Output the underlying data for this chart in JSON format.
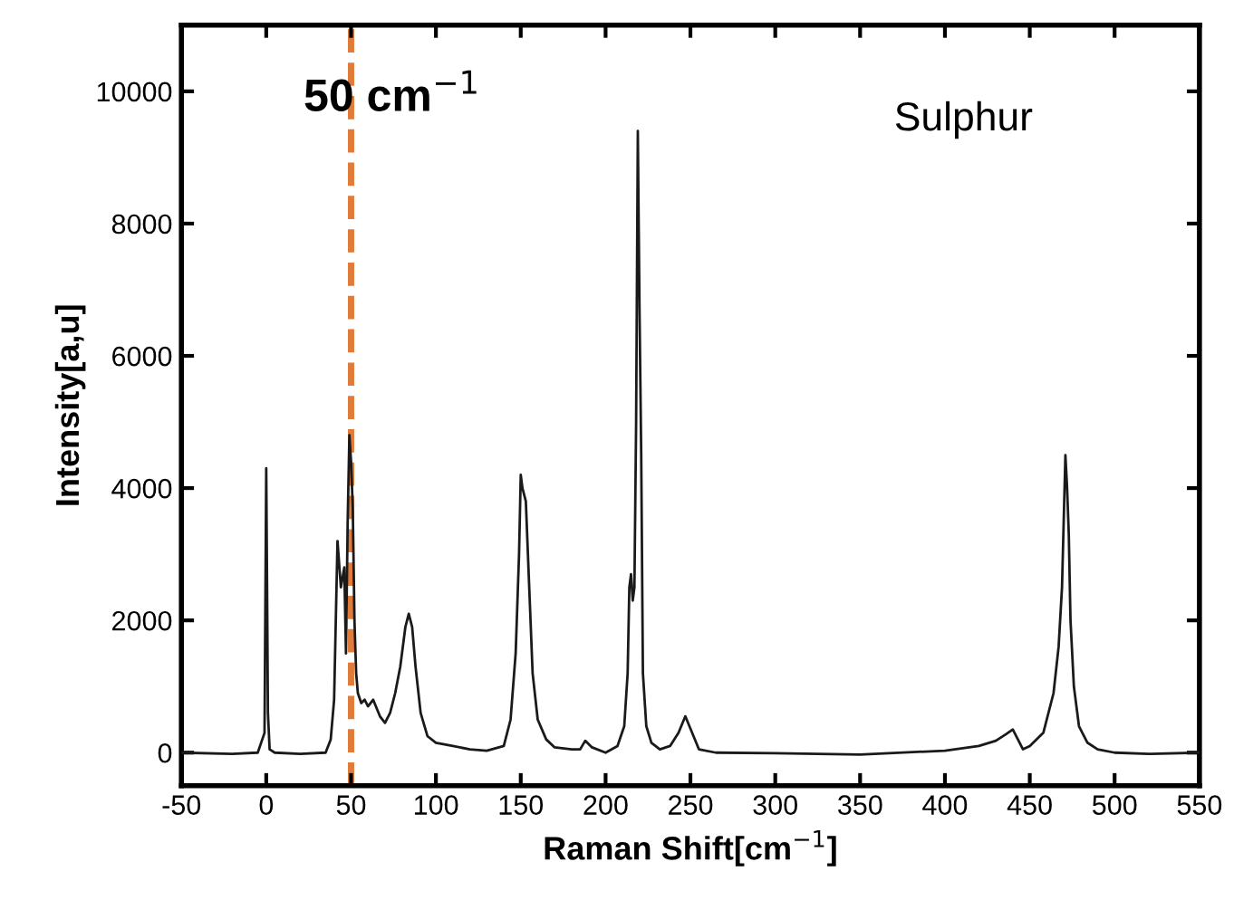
{
  "chart_data": {
    "type": "line",
    "xlabel": "Raman Shift[cm$^{−1}$]",
    "ylabel": "Intensity[a,u]",
    "annotations": [
      "50 cm$^{−1}$",
      "Sulphur"
    ],
    "series": [
      {
        "color": "#1a1a1a",
        "x": [
          -50,
          -20,
          -5,
          -1,
          0,
          0.5,
          1,
          2,
          5,
          20,
          35,
          38,
          40,
          42,
          44,
          46,
          47,
          48,
          49,
          50,
          51,
          52,
          53,
          54,
          56,
          58,
          60,
          63,
          67,
          70,
          73,
          76,
          79,
          82,
          84,
          86,
          88,
          91,
          95,
          100,
          110,
          120,
          130,
          140,
          144,
          147,
          149,
          150,
          151,
          152,
          153,
          155,
          157,
          160,
          165,
          170,
          180,
          185,
          188,
          192,
          200,
          207,
          211,
          213,
          214,
          215,
          216,
          217,
          218,
          219,
          220,
          221,
          222,
          224,
          227,
          232,
          238,
          243,
          247,
          251,
          255,
          265,
          300,
          350,
          400,
          420,
          430,
          436,
          440,
          443,
          446,
          450,
          458,
          464,
          467,
          469,
          470,
          471,
          472,
          473,
          474,
          476,
          479,
          484,
          490,
          500,
          520,
          550
        ],
        "values": [
          0,
          -20,
          0,
          300,
          4300,
          2500,
          600,
          50,
          0,
          -20,
          0,
          200,
          800,
          3200,
          2500,
          2800,
          1500,
          3500,
          4800,
          4400,
          3700,
          2000,
          1200,
          900,
          750,
          800,
          700,
          800,
          550,
          450,
          600,
          900,
          1300,
          1900,
          2100,
          1900,
          1300,
          600,
          250,
          150,
          100,
          50,
          30,
          100,
          500,
          1500,
          3000,
          4200,
          4000,
          3900,
          3800,
          2500,
          1200,
          500,
          200,
          80,
          50,
          50,
          180,
          80,
          0,
          100,
          400,
          1200,
          2500,
          2700,
          2300,
          2500,
          5000,
          9400,
          6700,
          4500,
          1200,
          400,
          150,
          50,
          100,
          300,
          550,
          300,
          50,
          0,
          -10,
          -30,
          30,
          100,
          180,
          280,
          350,
          200,
          50,
          100,
          300,
          900,
          1600,
          2500,
          3500,
          4500,
          4000,
          3300,
          2000,
          1000,
          400,
          150,
          50,
          0,
          -20,
          0
        ]
      }
    ],
    "xlim": [
      -50,
      550
    ],
    "ylim": [
      -500,
      11000
    ],
    "xticks": [
      -50,
      0,
      50,
      100,
      150,
      200,
      250,
      300,
      350,
      400,
      450,
      500,
      550
    ],
    "yticks": [
      0,
      2000,
      4000,
      6000,
      8000,
      10000
    ],
    "ref_lines": [
      {
        "axis": "x",
        "value": 50,
        "color": "#e07b39",
        "line_style": "dashed"
      }
    ],
    "grid": false,
    "legend": false,
    "marker": "none",
    "line_style": "solid"
  }
}
